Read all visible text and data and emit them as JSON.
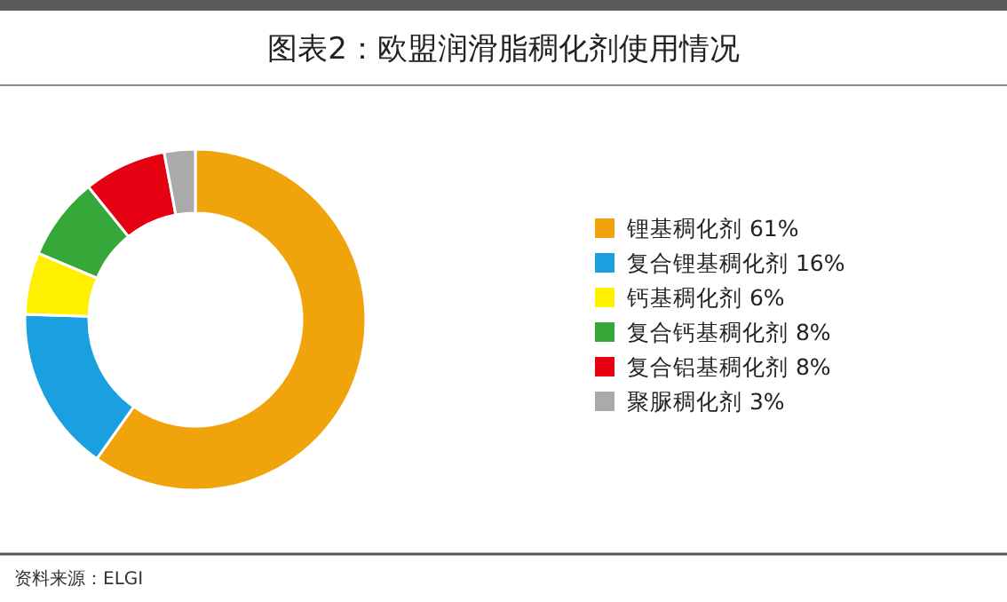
{
  "chart_data": {
    "type": "donut",
    "title": "图表2：欧盟润滑脂稠化剂使用情况",
    "categories": [
      "锂基稠化剂",
      "复合锂基稠化剂",
      "钙基稠化剂",
      "复合钙基稠化剂",
      "复合铝基稠化剂",
      "聚脲稠化剂"
    ],
    "values": [
      61,
      16,
      6,
      8,
      8,
      3
    ],
    "value_labels": [
      "61%",
      "16%",
      "6%",
      "8%",
      "8%",
      "3%"
    ],
    "colors": [
      "#f0a30a",
      "#1aa0e0",
      "#fff000",
      "#35a839",
      "#e50012",
      "#aaaaaa"
    ],
    "legend": "right",
    "annotations": [
      "资料来源：ELGI"
    ]
  }
}
